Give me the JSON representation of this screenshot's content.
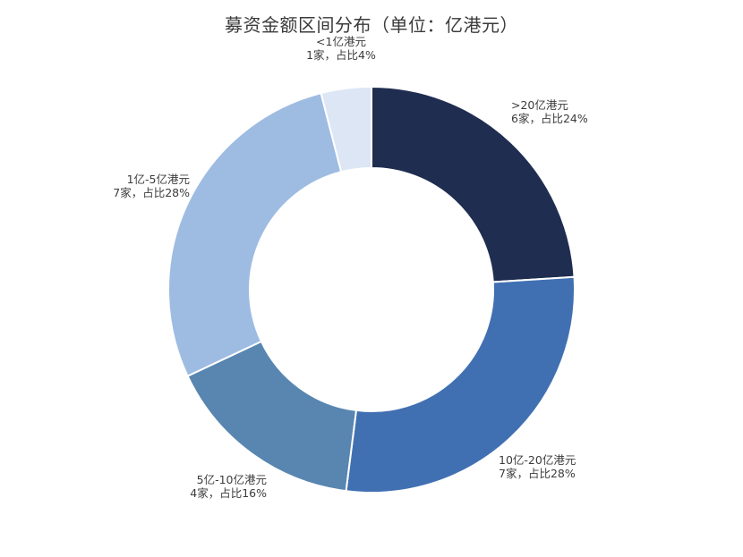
{
  "chart_data": {
    "type": "pie",
    "variant": "donut",
    "title": "募资金额区间分布（单位：亿港元）",
    "legend": "none",
    "slices": [
      {
        "name": ">20亿港元",
        "count_label": "6家，占比24%",
        "value": 24,
        "color": "#1f2d50"
      },
      {
        "name": "10亿-20亿港元",
        "count_label": "7家，占比28%",
        "value": 28,
        "color": "#4170b2"
      },
      {
        "name": "5亿-10亿港元",
        "count_label": "4家，占比16%",
        "value": 16,
        "color": "#5886b0"
      },
      {
        "name": "1亿-5亿港元",
        "count_label": "7家，占比28%",
        "value": 28,
        "color": "#9ebce2"
      },
      {
        "name": "<1亿港元",
        "count_label": "1家，占比4%",
        "value": 4,
        "color": "#dce6f5"
      }
    ]
  }
}
